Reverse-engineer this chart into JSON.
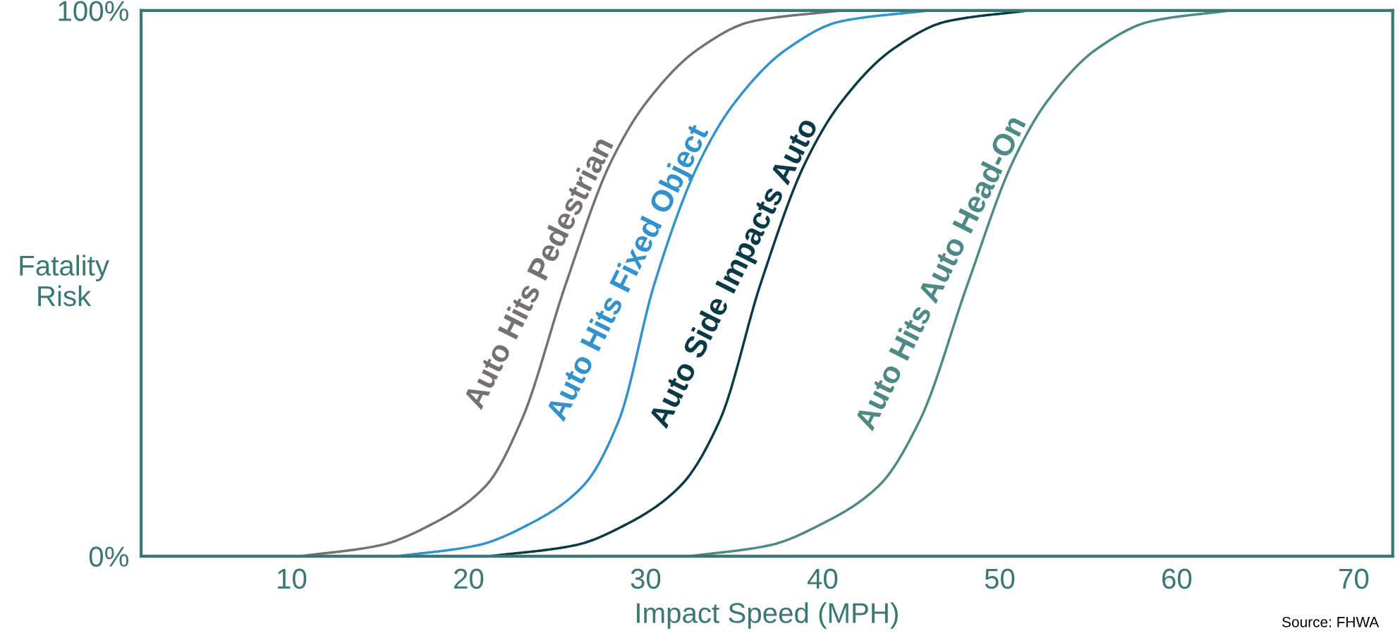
{
  "chart_data": {
    "type": "line",
    "xlabel": "Impact Speed (MPH)",
    "ylabel": "Fatality\nRisk",
    "xlim": [
      1.5,
      72.2
    ],
    "xticks": [
      10,
      20,
      30,
      40,
      50,
      60,
      70
    ],
    "ylim": [
      0,
      100
    ],
    "yticks": [
      {
        "value": 0,
        "label": "0%"
      },
      {
        "value": 100,
        "label": "100%"
      }
    ],
    "grid": false,
    "legend": false,
    "marker": "none",
    "line_style": "solid",
    "series": [
      {
        "name": "Auto Hits Pedestrian",
        "color": "#767171",
        "x": [
          10.5,
          15,
          18,
          21,
          23,
          25.5,
          28,
          30,
          33,
          36,
          41
        ],
        "values": [
          0,
          2,
          6,
          13,
          25,
          50,
          72,
          83,
          93,
          98,
          100
        ]
      },
      {
        "name": "Auto Hits Fixed Object",
        "color": "#3391cc",
        "x": [
          16,
          20.5,
          23.5,
          26.5,
          28.5,
          30.5,
          33,
          35,
          38,
          41,
          46
        ],
        "values": [
          0,
          2,
          6,
          13,
          25,
          50,
          72,
          83,
          93,
          98,
          100
        ]
      },
      {
        "name": "Auto Side Impacts Auto",
        "color": "#0b3a47",
        "x": [
          21.2,
          26,
          29,
          32,
          34.2,
          36.5,
          39,
          41,
          44,
          47,
          51.6
        ],
        "values": [
          0,
          2,
          6,
          13,
          25,
          50,
          72,
          83,
          93,
          98,
          100
        ]
      },
      {
        "name": "Auto Hits Auto Head-On",
        "color": "#4e8a85",
        "x": [
          32.5,
          37,
          40,
          43.2,
          45.5,
          48.2,
          50.7,
          52.6,
          55.5,
          58.5,
          63
        ],
        "values": [
          0,
          2,
          6,
          13,
          25,
          50,
          72,
          83,
          93,
          98,
          100
        ]
      }
    ],
    "annotations": [
      {
        "text": "Source: FHWA"
      }
    ]
  }
}
